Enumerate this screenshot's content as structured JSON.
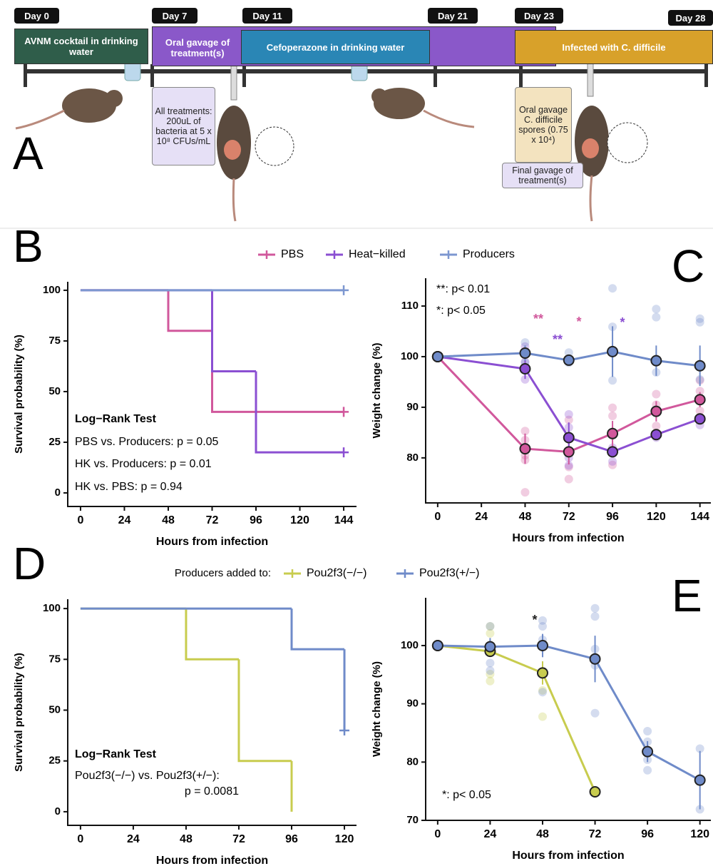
{
  "timeline": {
    "panel_label": "A",
    "days": [
      "Day 0",
      "Day 7",
      "Day 11",
      "Day 21",
      "Day 23",
      "Day 28"
    ],
    "phases": [
      "AVNM cocktail in drinking water",
      "Oral gavage of treatment(s)",
      "Cefoperazone in drinking water",
      "Infected with C. difficile"
    ],
    "notes": [
      "All treatments: 200uL of bacteria at 5 x 10⁸ CFUs/mL",
      "Oral gavage C. difficile spores (0.75 x 10⁴)",
      "Final gavage of treatment(s)"
    ]
  },
  "chart_data": [
    {
      "type": "survival",
      "panel_label": "B",
      "x": [
        0,
        48,
        72,
        96,
        144
      ],
      "series": [
        {
          "name": "PBS",
          "color": "#d1589c",
          "values": [
            100,
            80,
            40,
            40,
            40
          ]
        },
        {
          "name": "Heat−killed",
          "color": "#8b4fd2",
          "values": [
            100,
            100,
            60,
            20,
            20
          ]
        },
        {
          "name": "Producers",
          "color": "#7d97d0",
          "values": [
            100,
            100,
            100,
            100,
            100
          ]
        }
      ],
      "xlim": [
        -7,
        151
      ],
      "ylim": [
        -6.7,
        104.2
      ],
      "xticks": [
        0,
        24,
        48,
        72,
        96,
        120,
        144
      ],
      "yticks": [
        0,
        25,
        50,
        75,
        100
      ],
      "xlabel": "Hours from infection",
      "ylabel": "Survival probability (%)",
      "annotation_title": "Log−Rank Test",
      "annotations": [
        "PBS vs. Producers: p = 0.05",
        "HK  vs. Producers: p = 0.01",
        "HK vs. PBS: p = 0.94"
      ]
    },
    {
      "type": "line",
      "panel_label": "C",
      "x": [
        0,
        48,
        72,
        96,
        120,
        144
      ],
      "series": [
        {
          "color": "#d1589c",
          "values": [
            100,
            81.8,
            81.2,
            84.8,
            89.2,
            91.5
          ],
          "errors": [
            0,
            3,
            2.5,
            2.5,
            2,
            1.5
          ],
          "points_x": [
            48,
            48,
            48,
            48,
            48,
            72,
            72,
            72,
            72,
            96,
            96,
            96,
            120,
            120,
            120,
            144,
            144,
            144
          ],
          "points_y": [
            73.2,
            79.6,
            80.5,
            83.5,
            85.3,
            75.8,
            78.2,
            81.5,
            87.5,
            78.6,
            88.3,
            89.9,
            86.3,
            90.5,
            92.6,
            89.3,
            93.2,
            95.3
          ]
        },
        {
          "color": "#8b4fd2",
          "values": [
            100,
            97.6,
            84,
            81.2,
            84.6,
            87.7
          ],
          "errors": [
            0,
            2,
            3,
            1,
            0.5,
            0.5
          ],
          "points_x": [
            48,
            48,
            48,
            72,
            72,
            72,
            72,
            96,
            96,
            120,
            144,
            144
          ],
          "points_y": [
            95.5,
            99,
            102,
            78.5,
            80,
            86,
            88.6,
            79.3,
            82,
            84,
            86.5,
            88
          ]
        },
        {
          "color": "#6f8bc9",
          "values": [
            100,
            100.7,
            99.3,
            101,
            99.2,
            98.2
          ],
          "errors": [
            0,
            1.5,
            1,
            5,
            3,
            4
          ],
          "points_x": [
            48,
            48,
            48,
            72,
            72,
            96,
            96,
            96,
            120,
            120,
            120,
            144,
            144,
            144
          ],
          "points_y": [
            98.8,
            100.6,
            102.8,
            98.8,
            100.8,
            95.3,
            105.9,
            113.5,
            96.9,
            107.8,
            109.4,
            95.5,
            106.8,
            107.5
          ]
        }
      ],
      "xlim": [
        -6.6,
        150
      ],
      "ylim": [
        71.1,
        115.5
      ],
      "xticks": [
        0,
        24,
        48,
        72,
        96,
        120,
        144
      ],
      "yticks": [
        80,
        90,
        100,
        110
      ],
      "xlabel": "Hours from infection",
      "ylabel": "Weight change (%)",
      "annotations": [
        "**: p< 0.01",
        "*: p< 0.05"
      ],
      "stars": [
        {
          "text": "**",
          "color": "#d1589c"
        },
        {
          "text": "**",
          "color": "#8b4fd2"
        },
        {
          "text": "*",
          "color": "#d1589c"
        },
        {
          "text": "*",
          "color": "#8b4fd2"
        }
      ]
    },
    {
      "type": "survival",
      "panel_label": "D",
      "x": [
        0,
        48,
        72,
        96,
        120
      ],
      "legend_title": "Producers added to:",
      "series": [
        {
          "name": "Pou2f3(−/−)",
          "color": "#c8cc4e",
          "values": [
            100,
            75,
            25,
            0,
            null
          ]
        },
        {
          "name": "Pou2f3(+/−)",
          "color": "#6f8bc9",
          "values": [
            100,
            100,
            100,
            80,
            40
          ]
        }
      ],
      "xlim": [
        -5.8,
        125.5
      ],
      "ylim": [
        -6.7,
        104.6
      ],
      "xticks": [
        0,
        24,
        48,
        72,
        96,
        120
      ],
      "yticks": [
        0,
        25,
        50,
        75,
        100
      ],
      "xlabel": "Hours from infection",
      "ylabel": "Survival probability (%)",
      "annotation_title": "Log−Rank Test",
      "annotations": [
        "Pou2f3(−/−) vs. Pou2f3(+/−):",
        "p = 0.0081"
      ]
    },
    {
      "type": "line",
      "panel_label": "E",
      "x": [
        0,
        24,
        48,
        72,
        96,
        120
      ],
      "series": [
        {
          "color": "#c8cc4e",
          "values": [
            100,
            99,
            95.3,
            74.9,
            null,
            null
          ],
          "errors": [
            0,
            0.8,
            2,
            0,
            null,
            null
          ],
          "points_x": [
            24,
            24,
            24,
            24,
            48,
            48
          ],
          "points_y": [
            103.3,
            102.1,
            93.9,
            95.1,
            92.3,
            87.8
          ]
        },
        {
          "color": "#6f8bc9",
          "values": [
            100,
            99.8,
            100,
            97.7,
            81.8,
            76.9
          ],
          "errors": [
            0,
            1.5,
            2,
            4,
            1.8,
            5
          ],
          "points_x": [
            24,
            24,
            24,
            48,
            48,
            48,
            48,
            72,
            72,
            72,
            72,
            72,
            96,
            96,
            96,
            96,
            120,
            120
          ],
          "points_y": [
            97,
            95.7,
            103.3,
            104.3,
            103.3,
            101,
            92,
            106.4,
            105,
            99.4,
            96.6,
            88.4,
            85.3,
            83.5,
            80.4,
            78.6,
            82.3,
            71.9
          ]
        }
      ],
      "xlim": [
        -5.5,
        125
      ],
      "ylim": [
        70,
        108.2
      ],
      "xticks": [
        0,
        24,
        48,
        72,
        96,
        120
      ],
      "yticks": [
        70,
        80,
        90,
        100
      ],
      "xlabel": "Hours from infection",
      "ylabel": "Weight change (%)",
      "annotations": [
        "*: p< 0.05"
      ],
      "stars": [
        {
          "text": "*",
          "color": "#222222"
        }
      ]
    }
  ]
}
